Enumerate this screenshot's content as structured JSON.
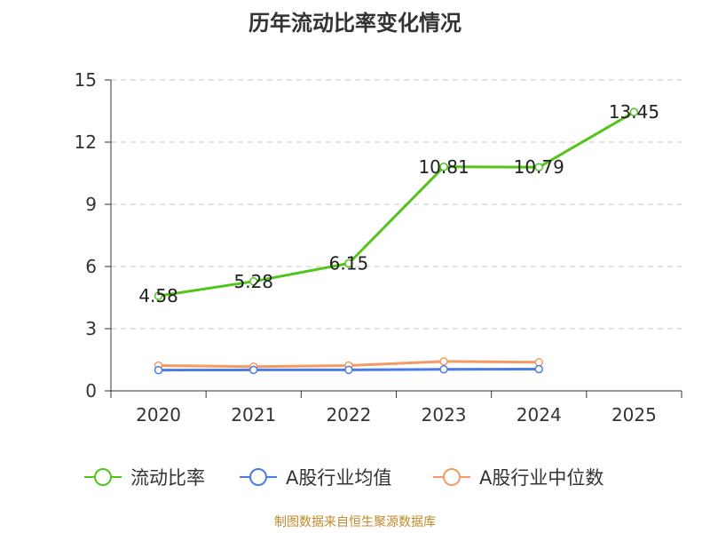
{
  "chart_data": {
    "type": "line",
    "title": "历年流动比率变化情况",
    "categories": [
      "2020",
      "2021",
      "2022",
      "2023",
      "2024",
      "2025"
    ],
    "ylim": [
      0,
      15
    ],
    "yticks": [
      0,
      3,
      6,
      9,
      12,
      15
    ],
    "grid": true,
    "legend_position": "bottom",
    "series": [
      {
        "name": "流动比率",
        "color": "#52c41a",
        "values": [
          4.58,
          5.28,
          6.15,
          10.81,
          10.79,
          13.45
        ],
        "labels": [
          "4.58",
          "5.28",
          "6.15",
          "10.81",
          "10.79",
          "13.45"
        ]
      },
      {
        "name": "A股行业均值",
        "color": "#4b7be5",
        "values": [
          1.0,
          1.01,
          1.01,
          1.04,
          1.05,
          null
        ]
      },
      {
        "name": "A股行业中位数",
        "color": "#f59a63",
        "values": [
          1.22,
          1.17,
          1.22,
          1.42,
          1.38,
          null
        ]
      }
    ],
    "source": "制图数据来自恒生聚源数据库"
  }
}
